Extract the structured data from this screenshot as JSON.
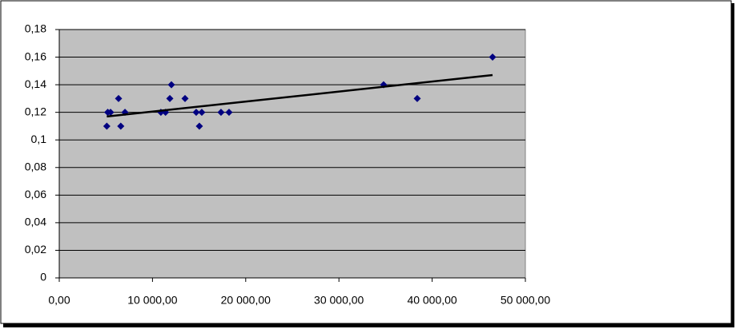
{
  "chart_data": {
    "type": "scatter",
    "x": [
      5100,
      5200,
      5500,
      6360,
      6600,
      7050,
      10900,
      11400,
      11860,
      12030,
      13490,
      14690,
      15030,
      15290,
      17350,
      18210,
      34790,
      38400,
      46480
    ],
    "values": [
      0.11,
      0.12,
      0.12,
      0.13,
      0.11,
      0.12,
      0.12,
      0.12,
      0.13,
      0.14,
      0.13,
      0.12,
      0.11,
      0.12,
      0.12,
      0.12,
      0.14,
      0.13,
      0.16
    ],
    "color": "#000080",
    "trendline": {
      "x": [
        5100,
        46480
      ],
      "values": [
        0.117,
        0.147
      ],
      "color": "#000000"
    },
    "xlim": [
      0,
      50000
    ],
    "xticks": [
      {
        "value": 0,
        "label": "0,00"
      },
      {
        "value": 10000,
        "label": "10 000,00"
      },
      {
        "value": 20000,
        "label": "20 000,00"
      },
      {
        "value": 30000,
        "label": "30 000,00"
      },
      {
        "value": 40000,
        "label": "40 000,00"
      },
      {
        "value": 50000,
        "label": "50 000,00"
      }
    ],
    "ylim": [
      0,
      0.18
    ],
    "yticks": [
      0,
      {
        "value": 0.02,
        "label": "0,02"
      },
      {
        "value": 0.04,
        "label": "0,04"
      },
      {
        "value": 0.06,
        "label": "0,06"
      },
      {
        "value": 0.08,
        "label": "0,08"
      },
      {
        "value": 0.1,
        "label": "0,1"
      },
      {
        "value": 0.12,
        "label": "0,12"
      },
      {
        "value": 0.14,
        "label": "0,14"
      },
      {
        "value": 0.16,
        "label": "0,16"
      },
      {
        "value": 0.18,
        "label": "0,18"
      }
    ],
    "grid": true,
    "plot_background": "#c0c0c0"
  }
}
